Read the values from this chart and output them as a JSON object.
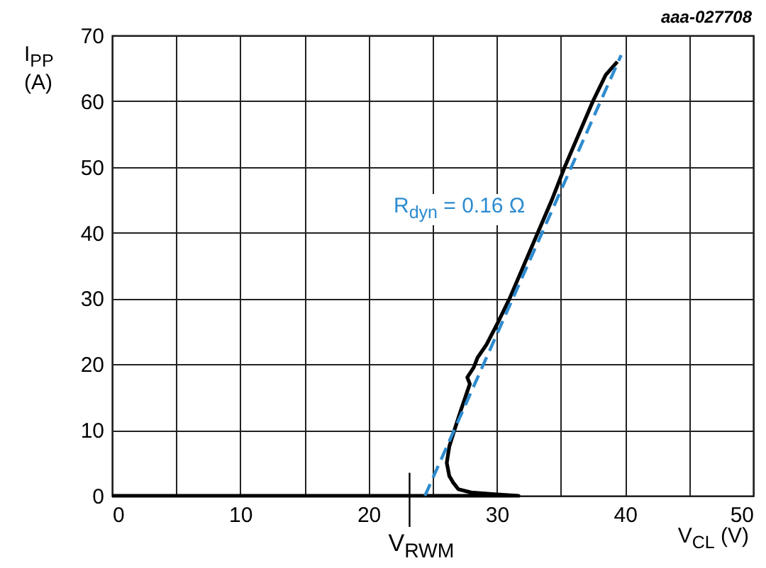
{
  "chart_data": {
    "type": "line",
    "xlabel": "V$_{CL}$ (V)",
    "ylabel": "I$_{PP}$ (A)",
    "xlim": [
      0,
      50
    ],
    "ylim": [
      0,
      70
    ],
    "xticks": [
      0,
      {
        "value": 5,
        "label": null
      },
      10,
      {
        "value": 15,
        "label": null
      },
      20,
      {
        "value": 25,
        "label": null
      },
      30,
      {
        "value": 35,
        "label": null
      },
      40,
      {
        "value": 45,
        "label": null
      },
      50
    ],
    "yticks": [
      0,
      10,
      20,
      30,
      40,
      50,
      60,
      70
    ],
    "grid": true,
    "series": [
      {
        "color": "#000000",
        "line_style": "solid",
        "x": [
          0,
          5,
          10,
          15,
          20,
          25,
          28,
          30,
          31.7,
          30,
          28,
          27,
          26.6,
          26.3,
          26.1,
          26.3,
          26.7,
          27.2,
          27.9,
          27.7,
          28.2,
          28.5,
          29.2,
          30,
          31,
          32.1,
          33.2,
          34.3,
          35.3,
          36.4,
          37.5,
          38.5,
          39.4
        ],
        "values": [
          0,
          0,
          0,
          0,
          0,
          0,
          0,
          0,
          0,
          0.2,
          0.5,
          1,
          2,
          3,
          5,
          7.5,
          10,
          13,
          17,
          18,
          19.5,
          21,
          23,
          26,
          30,
          35,
          40,
          45,
          50,
          55,
          60,
          64,
          66
        ]
      },
      {
        "name": "R$_{dyn}$ = 0.16 Ω",
        "type": "line",
        "color": "#2e8bcf",
        "line_style": "dashed",
        "x": [
          24.4,
          39.7
        ],
        "values": [
          0,
          67
        ]
      }
    ],
    "annotations": [
      "aaa-027708",
      {
        "text": "V$_{RWM}$",
        "x": 23.2,
        "y": 0
      }
    ]
  }
}
